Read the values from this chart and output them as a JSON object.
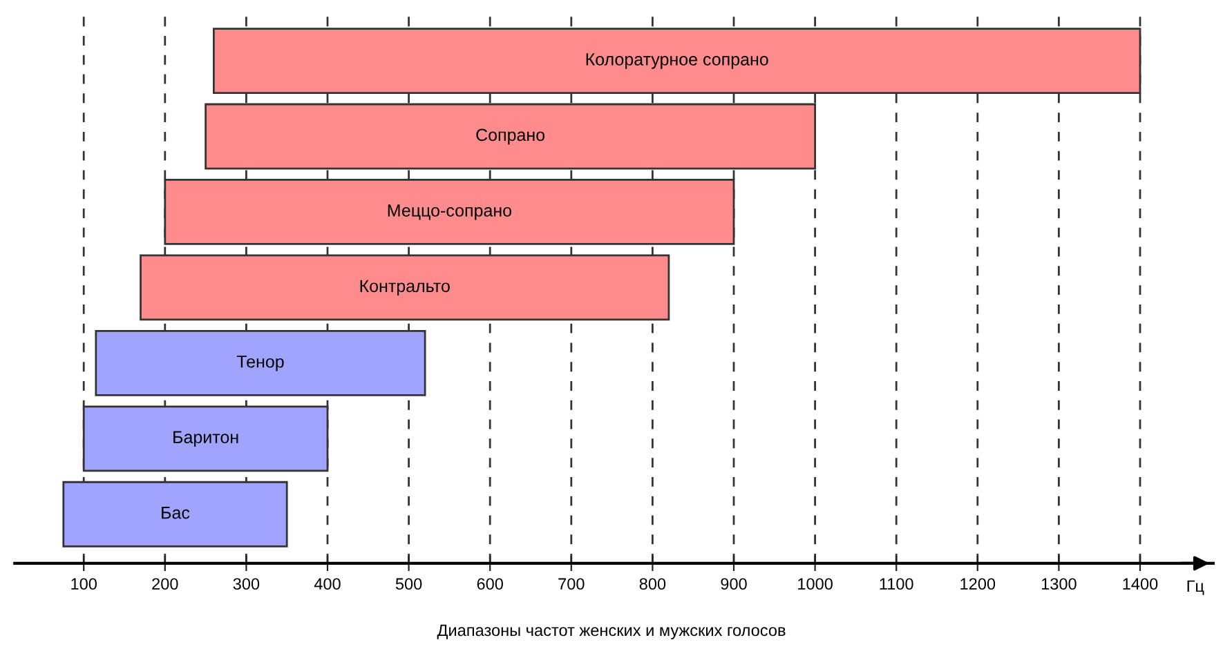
{
  "chart_data": {
    "type": "bar",
    "orientation": "horizontal",
    "title": "Диапазоны частот женских и мужских голосов",
    "xlabel": "Гц",
    "categories": [
      "Колоратурное сопрано",
      "Сопрано",
      "Меццо-сопрано",
      "Контральто",
      "Тенор",
      "Баритон",
      "Бас"
    ],
    "base": [
      260,
      250,
      200,
      170,
      115,
      100,
      75
    ],
    "values": [
      1140,
      750,
      700,
      650,
      405,
      300,
      275
    ],
    "colors": [
      "#ff8c8c",
      "#ff8c8c",
      "#ff8c8c",
      "#ff8c8c",
      "#a0a4ff",
      "#a0a4ff",
      "#a0a4ff"
    ],
    "xlim": [
      15,
      1490
    ],
    "xticks": [
      100,
      200,
      300,
      400,
      500,
      600,
      700,
      800,
      900,
      1000,
      1100,
      1200,
      1300,
      1400
    ],
    "grid": "x",
    "line_style": "dashed"
  }
}
